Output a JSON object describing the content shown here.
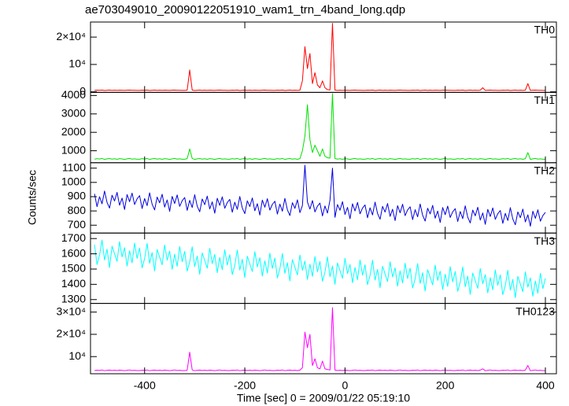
{
  "chart_data": {
    "type": "line",
    "title": "ae703049010_20090122051910_wam1_trn_4band_long.qdp",
    "x_label": "Time [sec] 0 = 2009/01/22 05:19:10",
    "y_label": "Counts/sec",
    "xlim": [
      -508,
      422
    ],
    "xticks": [
      -400,
      -200,
      0,
      200,
      400
    ],
    "x": [
      -500,
      -495,
      -490,
      -485,
      -480,
      -475,
      -470,
      -465,
      -460,
      -455,
      -450,
      -445,
      -440,
      -435,
      -430,
      -425,
      -420,
      -415,
      -410,
      -405,
      -400,
      -395,
      -390,
      -385,
      -380,
      -375,
      -370,
      -365,
      -360,
      -355,
      -350,
      -345,
      -340,
      -335,
      -330,
      -325,
      -320,
      -315,
      -310,
      -305,
      -300,
      -295,
      -290,
      -285,
      -280,
      -275,
      -270,
      -265,
      -260,
      -255,
      -250,
      -245,
      -240,
      -235,
      -230,
      -225,
      -220,
      -215,
      -210,
      -205,
      -200,
      -195,
      -190,
      -185,
      -180,
      -175,
      -170,
      -165,
      -160,
      -155,
      -150,
      -145,
      -140,
      -135,
      -130,
      -125,
      -120,
      -115,
      -110,
      -105,
      -100,
      -95,
      -90,
      -85,
      -80,
      -75,
      -70,
      -65,
      -60,
      -55,
      -50,
      -45,
      -40,
      -35,
      -30,
      -25,
      -20,
      -15,
      -10,
      -5,
      0,
      5,
      10,
      15,
      20,
      25,
      30,
      35,
      40,
      45,
      50,
      55,
      60,
      65,
      70,
      75,
      80,
      85,
      90,
      95,
      100,
      105,
      110,
      115,
      120,
      125,
      130,
      135,
      140,
      145,
      150,
      155,
      160,
      165,
      170,
      175,
      180,
      185,
      190,
      195,
      200,
      205,
      210,
      215,
      220,
      225,
      230,
      235,
      240,
      245,
      250,
      255,
      260,
      265,
      270,
      275,
      280,
      285,
      290,
      295,
      300,
      305,
      310,
      315,
      320,
      325,
      330,
      335,
      340,
      345,
      350,
      355,
      360,
      365,
      370,
      375,
      380,
      385,
      390,
      395,
      400
    ],
    "series": [
      {
        "name": "TH0",
        "color": "#ff0000",
        "ylim": [
          -200,
          25500
        ],
        "yticks": [
          0,
          {
            "value": 10000,
            "label": "10⁴"
          },
          {
            "value": 20000,
            "label": "2×10⁴"
          }
        ],
        "values": [
          520,
          600,
          560,
          640,
          500,
          580,
          620,
          540,
          600,
          530,
          610,
          570,
          510,
          590,
          630,
          550,
          580,
          540,
          520,
          600,
          560,
          640,
          500,
          580,
          620,
          540,
          600,
          530,
          610,
          570,
          510,
          590,
          630,
          550,
          580,
          540,
          520,
          600,
          8000,
          640,
          500,
          580,
          620,
          540,
          600,
          530,
          610,
          570,
          510,
          590,
          630,
          550,
          580,
          540,
          520,
          600,
          560,
          640,
          500,
          580,
          620,
          540,
          600,
          530,
          610,
          570,
          510,
          590,
          630,
          550,
          580,
          540,
          520,
          600,
          560,
          640,
          500,
          580,
          620,
          540,
          600,
          530,
          610,
          4000,
          16500,
          8500,
          14000,
          3000,
          7000,
          2500,
          1500,
          4000,
          1500,
          800,
          700,
          25000,
          620,
          540,
          600,
          530,
          610,
          570,
          510,
          590,
          630,
          550,
          580,
          540,
          520,
          600,
          560,
          640,
          500,
          580,
          620,
          540,
          600,
          530,
          610,
          570,
          510,
          590,
          630,
          550,
          580,
          540,
          520,
          600,
          560,
          640,
          500,
          580,
          620,
          540,
          600,
          530,
          610,
          570,
          510,
          590,
          630,
          550,
          580,
          540,
          520,
          600,
          560,
          640,
          500,
          580,
          620,
          540,
          600,
          530,
          610,
          1500,
          510,
          590,
          630,
          550,
          580,
          540,
          520,
          600,
          560,
          640,
          500,
          580,
          620,
          540,
          600,
          530,
          610,
          3000,
          510,
          590,
          630,
          550,
          580,
          540,
          520
        ]
      },
      {
        "name": "TH1",
        "color": "#00e000",
        "ylim": [
          350,
          4170
        ],
        "yticks": [
          1000,
          2000,
          3000,
          4000
        ],
        "values": [
          540,
          570,
          550,
          580,
          530,
          560,
          575,
          545,
          565,
          535,
          570,
          555,
          530,
          560,
          580,
          545,
          560,
          540,
          540,
          570,
          550,
          580,
          530,
          560,
          575,
          545,
          565,
          535,
          570,
          555,
          530,
          560,
          580,
          545,
          560,
          540,
          540,
          570,
          1100,
          580,
          530,
          560,
          575,
          545,
          565,
          535,
          570,
          555,
          530,
          560,
          580,
          545,
          560,
          540,
          540,
          570,
          550,
          580,
          530,
          560,
          575,
          545,
          565,
          535,
          570,
          555,
          530,
          560,
          580,
          545,
          560,
          540,
          540,
          570,
          550,
          580,
          530,
          560,
          575,
          545,
          565,
          535,
          570,
          1000,
          1800,
          3500,
          1600,
          900,
          1300,
          1000,
          700,
          1100,
          700,
          620,
          600,
          4100,
          575,
          545,
          565,
          535,
          570,
          555,
          530,
          560,
          580,
          545,
          560,
          540,
          540,
          570,
          550,
          580,
          530,
          560,
          575,
          545,
          565,
          535,
          570,
          555,
          530,
          560,
          580,
          545,
          560,
          540,
          540,
          570,
          550,
          580,
          530,
          560,
          575,
          545,
          565,
          535,
          570,
          555,
          530,
          560,
          580,
          545,
          560,
          540,
          540,
          570,
          550,
          580,
          530,
          560,
          575,
          545,
          565,
          535,
          570,
          555,
          530,
          560,
          580,
          545,
          560,
          540,
          540,
          570,
          550,
          580,
          530,
          560,
          575,
          545,
          565,
          535,
          570,
          900,
          530,
          560,
          580,
          545,
          560,
          540,
          540
        ]
      },
      {
        "name": "TH2",
        "color": "#0000e0",
        "ylim": [
          645,
          1138
        ],
        "yticks": [
          700,
          800,
          900,
          1000,
          1100
        ],
        "values": [
          920,
          830,
          900,
          850,
          940,
          860,
          820,
          910,
          870,
          930,
          840,
          890,
          810,
          915,
          865,
          925,
          845,
          885,
          907,
          817,
          887,
          837,
          927,
          847,
          807,
          897,
          857,
          917,
          827,
          877,
          797,
          902,
          852,
          912,
          832,
          872,
          894,
          804,
          874,
          824,
          914,
          834,
          794,
          884,
          844,
          904,
          814,
          864,
          784,
          889,
          839,
          899,
          819,
          859,
          881,
          791,
          861,
          811,
          901,
          821,
          781,
          871,
          831,
          891,
          801,
          851,
          771,
          876,
          826,
          886,
          806,
          846,
          868,
          778,
          848,
          798,
          888,
          808,
          768,
          858,
          818,
          878,
          788,
          838,
          1120,
          863,
          813,
          873,
          793,
          833,
          855,
          765,
          835,
          785,
          875,
          1100,
          755,
          845,
          805,
          865,
          775,
          825,
          745,
          850,
          800,
          860,
          780,
          820,
          842,
          752,
          822,
          772,
          862,
          782,
          742,
          832,
          792,
          852,
          762,
          812,
          732,
          837,
          787,
          847,
          767,
          807,
          829,
          739,
          809,
          759,
          849,
          769,
          729,
          819,
          779,
          839,
          749,
          799,
          719,
          824,
          774,
          834,
          754,
          794,
          816,
          726,
          796,
          746,
          836,
          756,
          716,
          806,
          766,
          826,
          736,
          786,
          706,
          811,
          761,
          821,
          741,
          781,
          803,
          713,
          783,
          733,
          823,
          743,
          703,
          793,
          753,
          813,
          723,
          773,
          693,
          798,
          748,
          808,
          728,
          768,
          790
        ]
      },
      {
        "name": "TH3",
        "color": "#00ffff",
        "ylim": [
          1275,
          1736
        ],
        "yticks": [
          1300,
          1400,
          1500,
          1600,
          1700
        ],
        "values": [
          1660,
          1530,
          1590,
          1690,
          1560,
          1630,
          1510,
          1650,
          1600,
          1550,
          1680,
          1580,
          1640,
          1520,
          1620,
          1540,
          1670,
          1570,
          1638,
          1508,
          1568,
          1668,
          1538,
          1608,
          1488,
          1628,
          1578,
          1528,
          1658,
          1558,
          1618,
          1498,
          1598,
          1518,
          1648,
          1548,
          1616,
          1486,
          1546,
          1646,
          1516,
          1586,
          1466,
          1606,
          1556,
          1506,
          1636,
          1536,
          1596,
          1476,
          1576,
          1496,
          1626,
          1526,
          1594,
          1464,
          1524,
          1624,
          1494,
          1564,
          1444,
          1584,
          1534,
          1484,
          1614,
          1514,
          1574,
          1454,
          1554,
          1474,
          1604,
          1504,
          1572,
          1442,
          1502,
          1602,
          1472,
          1542,
          1422,
          1562,
          1512,
          1462,
          1592,
          1492,
          1552,
          1432,
          1532,
          1452,
          1582,
          1482,
          1550,
          1420,
          1480,
          1580,
          1450,
          1520,
          1400,
          1540,
          1490,
          1440,
          1570,
          1470,
          1530,
          1410,
          1510,
          1430,
          1560,
          1460,
          1528,
          1398,
          1458,
          1558,
          1428,
          1498,
          1378,
          1518,
          1468,
          1418,
          1548,
          1448,
          1508,
          1388,
          1488,
          1408,
          1538,
          1438,
          1506,
          1376,
          1436,
          1536,
          1406,
          1476,
          1356,
          1496,
          1446,
          1396,
          1526,
          1426,
          1486,
          1366,
          1466,
          1386,
          1516,
          1416,
          1484,
          1354,
          1414,
          1514,
          1384,
          1454,
          1334,
          1474,
          1424,
          1374,
          1504,
          1404,
          1464,
          1344,
          1444,
          1364,
          1494,
          1394,
          1462,
          1332,
          1392,
          1492,
          1362,
          1432,
          1312,
          1452,
          1402,
          1352,
          1482,
          1382,
          1442,
          1322,
          1422,
          1342,
          1472,
          1372,
          1440
        ]
      },
      {
        "name": "TH0123",
        "color": "#ff00ff",
        "ylim": [
          2300,
          33900
        ],
        "yticks": [
          {
            "value": 10000,
            "label": "10⁴"
          },
          {
            "value": 20000,
            "label": "2×10⁴"
          },
          {
            "value": 30000,
            "label": "3×10⁴"
          }
        ],
        "values": [
          3700,
          3900,
          3800,
          4000,
          3650,
          3850,
          3950,
          3750,
          3900,
          3700,
          3950,
          3800,
          3650,
          3850,
          4000,
          3750,
          3850,
          3700,
          3700,
          3900,
          3800,
          4000,
          3650,
          3850,
          3950,
          3750,
          3900,
          3700,
          3950,
          3800,
          3650,
          3850,
          4000,
          3750,
          3850,
          3700,
          3700,
          3900,
          12000,
          4000,
          3650,
          3850,
          3950,
          3750,
          3900,
          3700,
          3950,
          3800,
          3650,
          3850,
          4000,
          3750,
          3850,
          3700,
          3700,
          3900,
          3800,
          4000,
          3650,
          3850,
          3950,
          3750,
          3900,
          3700,
          3950,
          3800,
          3650,
          3850,
          4000,
          3750,
          3850,
          3700,
          3700,
          3900,
          3800,
          4000,
          3650,
          3850,
          3950,
          3750,
          3900,
          3700,
          3950,
          5000,
          21000,
          14000,
          20000,
          6000,
          9000,
          5000,
          4500,
          8000,
          4500,
          4200,
          4000,
          32000,
          3950,
          3750,
          3900,
          3700,
          3950,
          3800,
          3650,
          3850,
          4000,
          3750,
          3850,
          3700,
          3700,
          3900,
          3800,
          4000,
          3650,
          3850,
          3950,
          3750,
          3900,
          3700,
          3950,
          3800,
          3650,
          3850,
          4000,
          3750,
          3850,
          3700,
          3700,
          3900,
          3800,
          4000,
          3650,
          3850,
          3950,
          3750,
          3900,
          3700,
          3950,
          3800,
          3650,
          3850,
          4000,
          3750,
          3850,
          3700,
          3700,
          3900,
          3800,
          4000,
          3650,
          3850,
          3950,
          3750,
          3900,
          3700,
          3950,
          4500,
          3650,
          3850,
          4000,
          3750,
          3850,
          3700,
          3700,
          3900,
          3800,
          4000,
          3650,
          3850,
          3950,
          3750,
          3900,
          3700,
          3950,
          6000,
          3650,
          3850,
          4000,
          3750,
          3850,
          3700,
          3700
        ]
      }
    ]
  }
}
